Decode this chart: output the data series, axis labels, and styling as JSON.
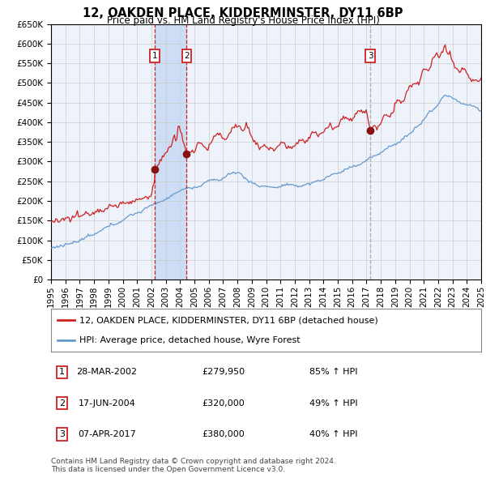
{
  "title": "12, OAKDEN PLACE, KIDDERMINSTER, DY11 6BP",
  "subtitle": "Price paid vs. HM Land Registry's House Price Index (HPI)",
  "legend_line1": "12, OAKDEN PLACE, KIDDERMINSTER, DY11 6BP (detached house)",
  "legend_line2": "HPI: Average price, detached house, Wyre Forest",
  "footer1": "Contains HM Land Registry data © Crown copyright and database right 2024.",
  "footer2": "This data is licensed under the Open Government Licence v3.0.",
  "transactions": [
    {
      "num": 1,
      "date": "28-MAR-2002",
      "price": 279950,
      "pct": "85%",
      "dir": "↑"
    },
    {
      "num": 2,
      "date": "17-JUN-2004",
      "price": 320000,
      "pct": "49%",
      "dir": "↑"
    },
    {
      "num": 3,
      "date": "07-APR-2017",
      "price": 380000,
      "pct": "40%",
      "dir": "↑"
    }
  ],
  "transaction_dates_decimal": [
    2002.23,
    2004.46,
    2017.27
  ],
  "transaction_prices": [
    279950,
    320000,
    380000
  ],
  "red_line_color": "#cc2222",
  "blue_line_color": "#6699cc",
  "marker_color": "#881111",
  "grid_color": "#cccccc",
  "bg_color": "#ffffff",
  "plot_bg_color": "#eef2fa",
  "highlight_bg_color": "#ccddf5",
  "dashed_line_color": "#cc2222",
  "dashed_line3_color": "#aaaaaa",
  "ylim": [
    0,
    650000
  ],
  "yticks": [
    0,
    50000,
    100000,
    150000,
    200000,
    250000,
    300000,
    350000,
    400000,
    450000,
    500000,
    550000,
    600000,
    650000
  ],
  "year_start": 1995,
  "year_end": 2025
}
